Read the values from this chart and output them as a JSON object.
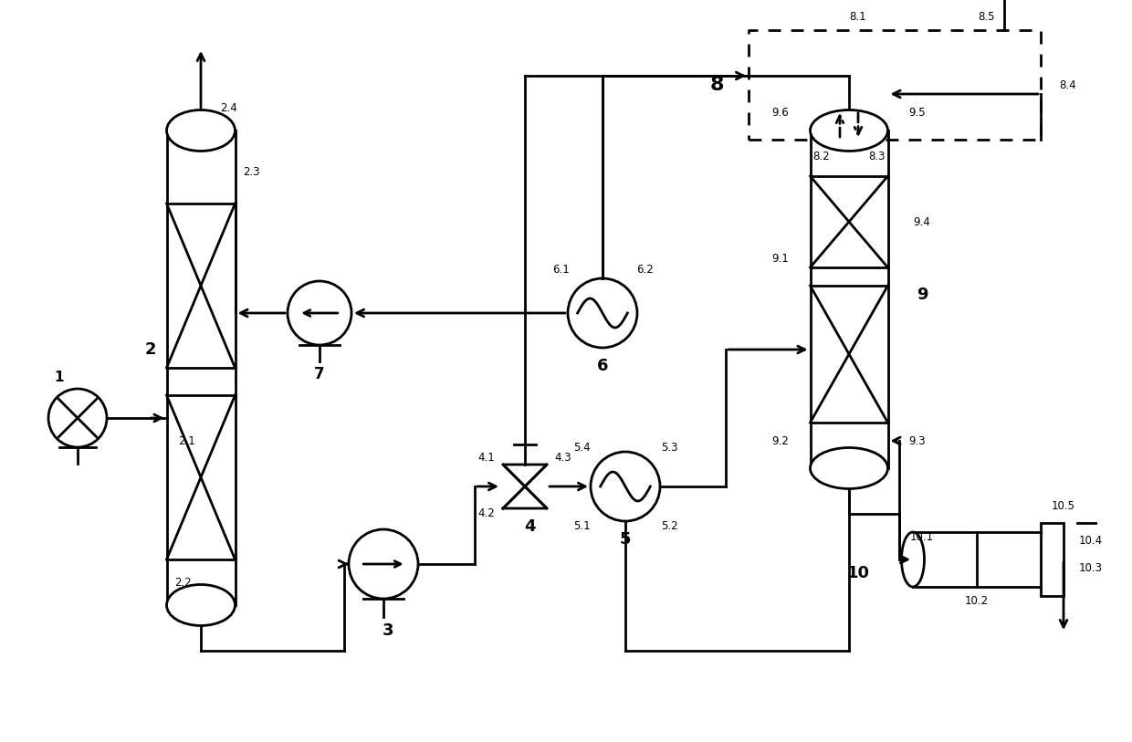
{
  "bg": "#ffffff",
  "lc": "#000000",
  "lw": 2.0,
  "figsize": [
    12.4,
    8.13
  ],
  "dpi": 100,
  "xlim": [
    0,
    124
  ],
  "ylim": [
    0,
    81.3
  ]
}
